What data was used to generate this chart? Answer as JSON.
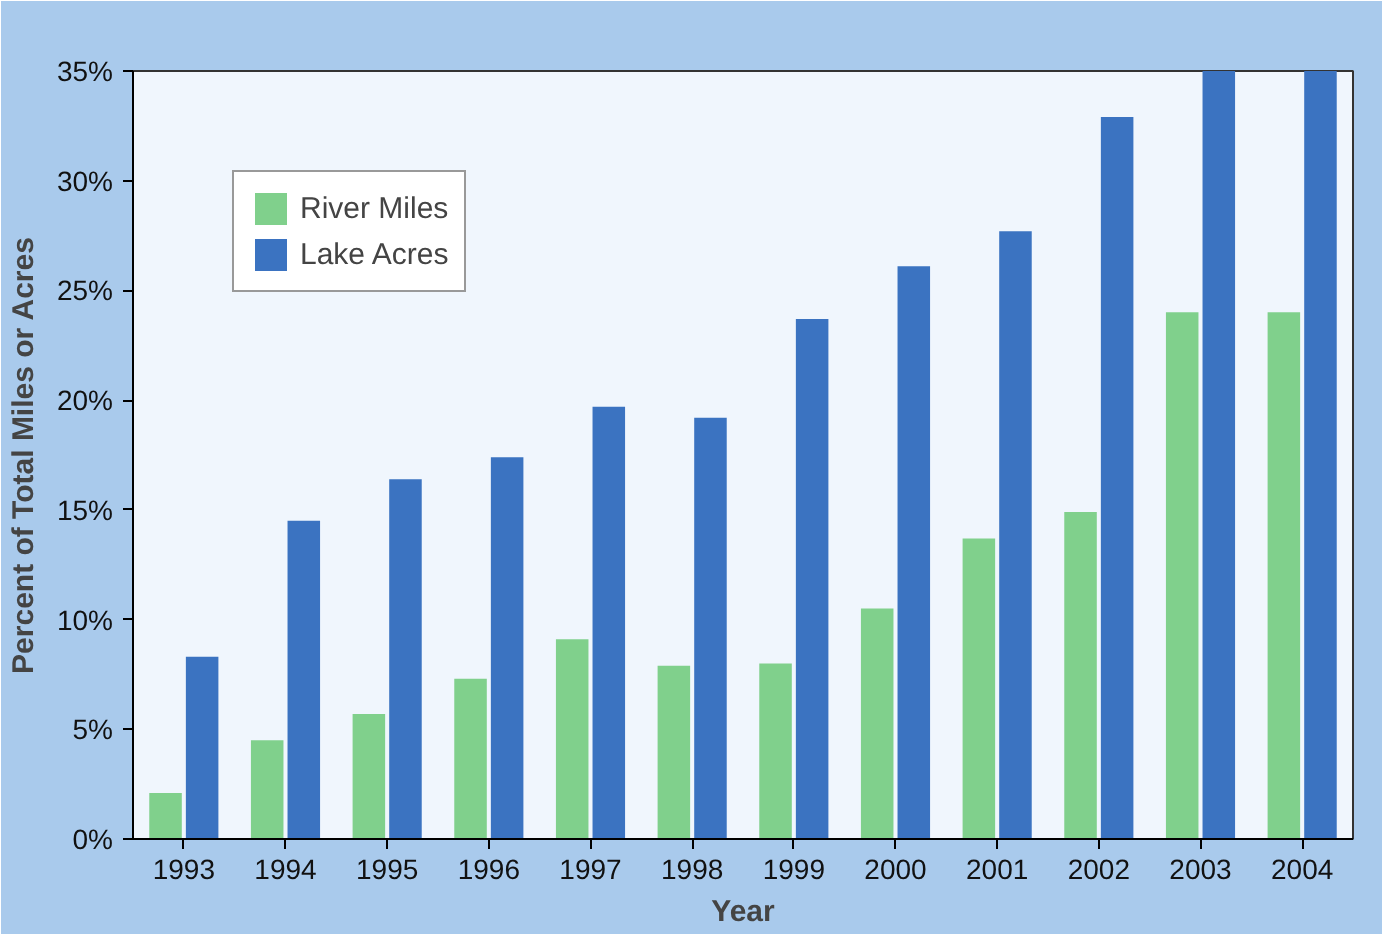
{
  "chart_data": {
    "type": "bar",
    "xlabel": "Year",
    "ylabel": "Percent of Total Miles or Acres",
    "categories": [
      "1993",
      "1994",
      "1995",
      "1996",
      "1997",
      "1998",
      "1999",
      "2000",
      "2001",
      "2002",
      "2003",
      "2004"
    ],
    "series": [
      {
        "name": "River Miles",
        "color": "#80d08c",
        "values": [
          2.1,
          4.5,
          5.7,
          7.3,
          9.1,
          7.9,
          8.0,
          10.5,
          13.7,
          14.9,
          24.0,
          24.0
        ]
      },
      {
        "name": "Lake Acres",
        "color": "#3b73c1",
        "values": [
          8.3,
          14.5,
          16.4,
          17.4,
          19.7,
          19.2,
          23.7,
          26.1,
          27.7,
          32.9,
          35.0,
          35.0
        ]
      }
    ],
    "ylim": [
      0,
      35
    ],
    "yticks": [
      {
        "value": 0,
        "label": "0%"
      },
      {
        "value": 5,
        "label": "5%"
      },
      {
        "value": 10,
        "label": "10%"
      },
      {
        "value": 15,
        "label": "15%"
      },
      {
        "value": 20,
        "label": "20%"
      },
      {
        "value": 25,
        "label": "25%"
      },
      {
        "value": 30,
        "label": "30%"
      },
      {
        "value": 35,
        "label": "35%"
      }
    ],
    "grid": false,
    "legend": "top left"
  }
}
